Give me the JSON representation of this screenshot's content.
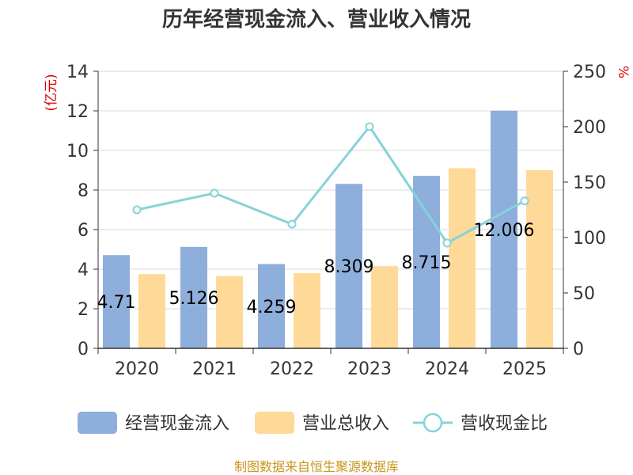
{
  "chart_data": {
    "type": "bar",
    "title": "历年经营现金流入、营业收入情况",
    "categories": [
      "2020",
      "2021",
      "2022",
      "2023",
      "2024",
      "2025"
    ],
    "series": [
      {
        "name": "经营现金流入",
        "kind": "bar",
        "axis": "left",
        "color": "#8eaedb",
        "values": [
          4.71,
          5.126,
          4.259,
          8.309,
          8.715,
          12.006
        ]
      },
      {
        "name": "营业总收入",
        "kind": "bar",
        "axis": "left",
        "color": "#ffd998",
        "values": [
          3.75,
          3.65,
          3.8,
          4.15,
          9.1,
          9.0
        ]
      },
      {
        "name": "营收现金比",
        "kind": "line",
        "axis": "right",
        "color": "#86d3d8",
        "values": [
          125,
          140,
          112,
          200,
          95,
          133
        ]
      }
    ],
    "data_labels": [
      "4.71",
      "5.126",
      "4.259",
      "8.309",
      "8.715",
      "12.006"
    ],
    "left_axis": {
      "unit": "(亿元)",
      "ylim": [
        0,
        14
      ],
      "ticks": [
        "0",
        "2",
        "4",
        "6",
        "8",
        "10",
        "12",
        "14"
      ]
    },
    "right_axis": {
      "unit": "%",
      "ylim": [
        0,
        250
      ],
      "ticks": [
        "0",
        "50",
        "100",
        "150",
        "200",
        "250"
      ]
    },
    "grid": true,
    "legend_position": "bottom"
  },
  "source_text": "制图数据来自恒生聚源数据库"
}
